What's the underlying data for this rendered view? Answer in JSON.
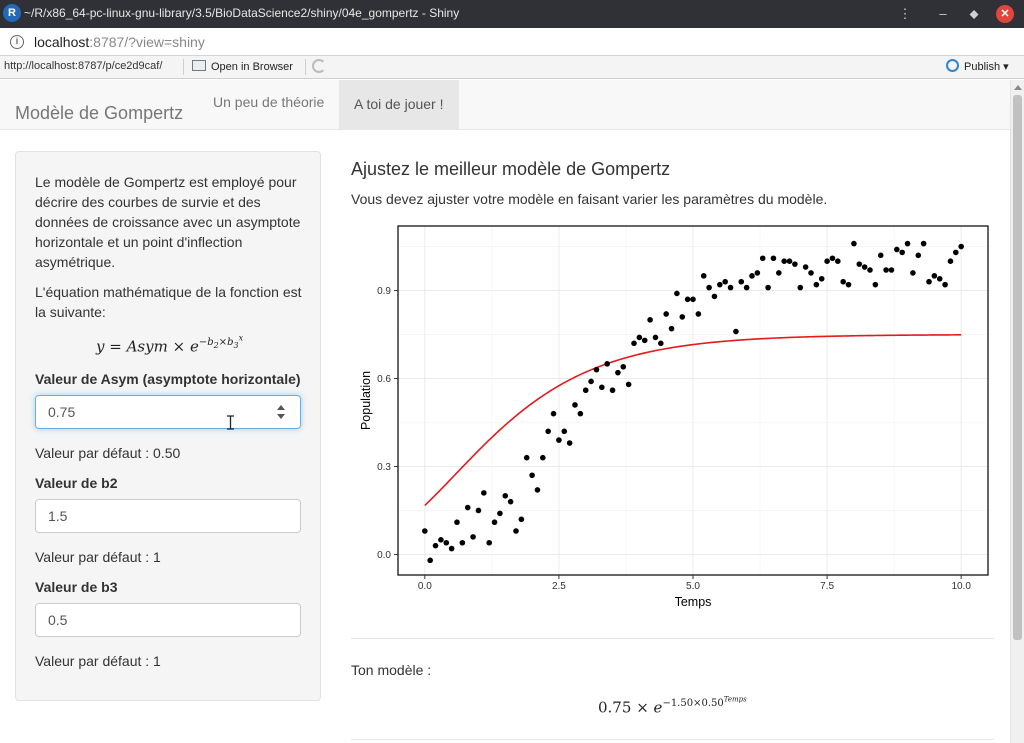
{
  "window": {
    "app_icon": "R",
    "title": "~/R/x86_64-pc-linux-gnu-library/3.5/BioDataScience2/shiny/04e_gompertz - Shiny",
    "menu_icon": "⋮",
    "minimize_icon": "–",
    "maximize_icon": "⬥",
    "close_icon": "✕"
  },
  "address": {
    "host": "localhost",
    "rest": ":8787/?view=shiny"
  },
  "viewer": {
    "url": "http://localhost:8787/p/ce2d9caf/",
    "open_label": "Open in Browser",
    "publish_label": "Publish",
    "publish_caret": "▾"
  },
  "navbar": {
    "brand": "Modèle de Gompertz",
    "tabs": [
      {
        "label": "Un peu de théorie",
        "active": false
      },
      {
        "label": "A toi de jouer !",
        "active": true
      }
    ]
  },
  "sidebar": {
    "intro": "Le modèle de Gompertz est employé pour décrire des courbes de survie et des données de croissance avec un asymptote horizontale et un point d'inflection asymétrique.",
    "equation_intro": "L'équation mathématique de la fonction est la suivante:",
    "equation": {
      "lhs": "y",
      "asym": "Asym",
      "times": "×",
      "e": "e",
      "exp_minus": "−",
      "b2": "b",
      "b2_sub": "2",
      "b3": "b",
      "b3_sub": "3",
      "x": "x"
    },
    "inputs": [
      {
        "label": "Valeur de Asym (asymptote horizontale)",
        "value": "0.75",
        "default_text": "Valeur par défaut : 0.50"
      },
      {
        "label": "Valeur de b2",
        "value": "1.5",
        "default_text": "Valeur par défaut : 1"
      },
      {
        "label": "Valeur de b3",
        "value": "0.5",
        "default_text": "Valeur par défaut : 1"
      }
    ]
  },
  "main": {
    "title": "Ajustez le meilleur modèle de Gompertz",
    "subtitle": "Vous devez ajuster votre modèle en faisant varier les paramètres du modèle.",
    "model_label": "Ton modèle :",
    "model_equation": {
      "asym": "0.75",
      "times": "×",
      "e": "e",
      "exponent": "−1.50×0.50",
      "sup": "Temps"
    }
  },
  "chart_data": {
    "type": "scatter",
    "xlabel": "Temps",
    "ylabel": "Population",
    "xlim": [
      -0.5,
      10.5
    ],
    "ylim": [
      -0.07,
      1.12
    ],
    "xticks": [
      "0.0",
      "2.5",
      "5.0",
      "7.5",
      "10.0"
    ],
    "yticks": [
      "0.0",
      "0.3",
      "0.6",
      "0.9"
    ],
    "grid": true,
    "points": [
      [
        0.0,
        0.08
      ],
      [
        0.1,
        -0.02
      ],
      [
        0.2,
        0.03
      ],
      [
        0.3,
        0.05
      ],
      [
        0.4,
        0.04
      ],
      [
        0.5,
        0.02
      ],
      [
        0.6,
        0.11
      ],
      [
        0.7,
        0.04
      ],
      [
        0.8,
        0.16
      ],
      [
        0.9,
        0.06
      ],
      [
        1.0,
        0.15
      ],
      [
        1.1,
        0.21
      ],
      [
        1.2,
        0.04
      ],
      [
        1.3,
        0.11
      ],
      [
        1.4,
        0.14
      ],
      [
        1.5,
        0.2
      ],
      [
        1.6,
        0.18
      ],
      [
        1.7,
        0.08
      ],
      [
        1.8,
        0.12
      ],
      [
        1.9,
        0.33
      ],
      [
        2.0,
        0.27
      ],
      [
        2.1,
        0.22
      ],
      [
        2.2,
        0.33
      ],
      [
        2.3,
        0.42
      ],
      [
        2.4,
        0.48
      ],
      [
        2.5,
        0.39
      ],
      [
        2.6,
        0.42
      ],
      [
        2.7,
        0.38
      ],
      [
        2.8,
        0.51
      ],
      [
        2.9,
        0.48
      ],
      [
        3.0,
        0.56
      ],
      [
        3.1,
        0.59
      ],
      [
        3.2,
        0.63
      ],
      [
        3.3,
        0.57
      ],
      [
        3.4,
        0.65
      ],
      [
        3.5,
        0.56
      ],
      [
        3.6,
        0.62
      ],
      [
        3.7,
        0.64
      ],
      [
        3.8,
        0.58
      ],
      [
        3.9,
        0.72
      ],
      [
        4.0,
        0.74
      ],
      [
        4.1,
        0.73
      ],
      [
        4.2,
        0.8
      ],
      [
        4.3,
        0.74
      ],
      [
        4.4,
        0.72
      ],
      [
        4.5,
        0.82
      ],
      [
        4.6,
        0.77
      ],
      [
        4.7,
        0.89
      ],
      [
        4.8,
        0.81
      ],
      [
        4.9,
        0.87
      ],
      [
        5.0,
        0.87
      ],
      [
        5.1,
        0.82
      ],
      [
        5.2,
        0.95
      ],
      [
        5.3,
        0.91
      ],
      [
        5.4,
        0.88
      ],
      [
        5.5,
        0.92
      ],
      [
        5.6,
        0.93
      ],
      [
        5.7,
        0.91
      ],
      [
        5.8,
        0.76
      ],
      [
        5.9,
        0.93
      ],
      [
        6.0,
        0.91
      ],
      [
        6.1,
        0.95
      ],
      [
        6.2,
        0.96
      ],
      [
        6.3,
        1.01
      ],
      [
        6.4,
        0.91
      ],
      [
        6.5,
        1.01
      ],
      [
        6.6,
        0.96
      ],
      [
        6.7,
        1.0
      ],
      [
        6.8,
        1.0
      ],
      [
        6.9,
        0.99
      ],
      [
        7.0,
        0.91
      ],
      [
        7.1,
        0.98
      ],
      [
        7.2,
        0.96
      ],
      [
        7.3,
        0.92
      ],
      [
        7.4,
        0.94
      ],
      [
        7.5,
        1.0
      ],
      [
        7.6,
        1.01
      ],
      [
        7.7,
        1.0
      ],
      [
        7.8,
        0.93
      ],
      [
        7.9,
        0.92
      ],
      [
        8.0,
        1.06
      ],
      [
        8.1,
        0.99
      ],
      [
        8.2,
        0.98
      ],
      [
        8.3,
        0.97
      ],
      [
        8.4,
        0.92
      ],
      [
        8.5,
        1.02
      ],
      [
        8.6,
        0.97
      ],
      [
        8.7,
        0.97
      ],
      [
        8.8,
        1.04
      ],
      [
        8.9,
        1.03
      ],
      [
        9.0,
        1.06
      ],
      [
        9.1,
        0.96
      ],
      [
        9.2,
        1.02
      ],
      [
        9.3,
        1.06
      ],
      [
        9.4,
        0.93
      ],
      [
        9.5,
        0.95
      ],
      [
        9.6,
        0.94
      ],
      [
        9.7,
        0.92
      ],
      [
        9.8,
        1.0
      ],
      [
        9.9,
        1.03
      ],
      [
        10.0,
        1.05
      ]
    ],
    "curve": {
      "formula": "Asym * exp(-b2 * b3^x)",
      "Asym": 0.75,
      "b2": 1.5,
      "b3": 0.5,
      "color": "#e41a1c"
    },
    "point_color": "#000000"
  }
}
